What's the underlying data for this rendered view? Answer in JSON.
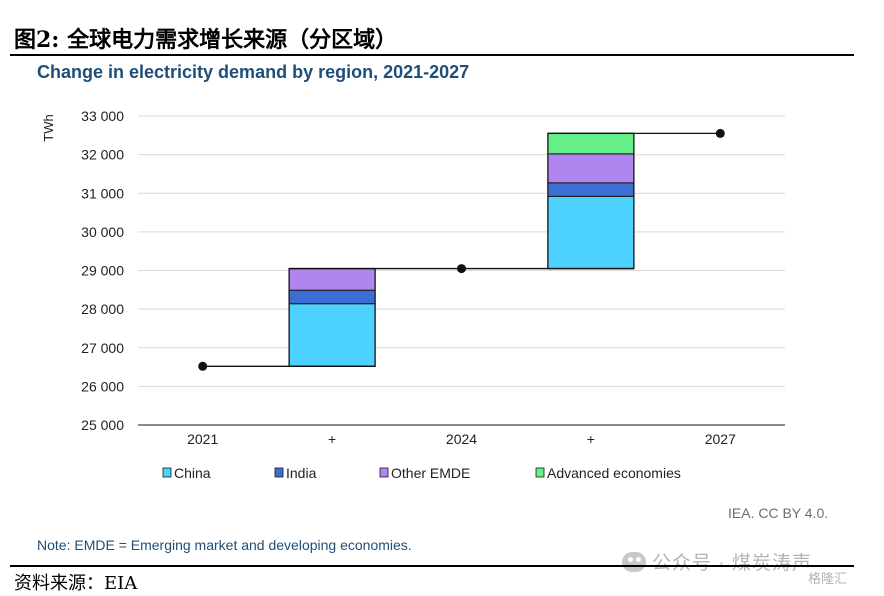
{
  "figure_title": "图2:  全球电力需求增长来源（分区域）",
  "source": "资料来源：EIA",
  "note": "Note: EMDE = Emerging market and developing economies.",
  "credit": "IEA. CC BY 4.0.",
  "watermark": "公众号 · 煤炭涛声",
  "watermark_badge": "格隆汇",
  "chart_data": {
    "type": "bar",
    "subtype": "waterfall-stacked",
    "title": "Change in electricity demand by region, 2021-2027",
    "ylabel": "TWh",
    "xlabel": "",
    "categories": [
      "2021",
      "+",
      "2024",
      "+",
      "2027"
    ],
    "ylim": [
      25000,
      33000
    ],
    "yticks": [
      25000,
      26000,
      27000,
      28000,
      29000,
      30000,
      31000,
      32000,
      33000
    ],
    "ytick_labels": [
      "25 000",
      "26 000",
      "27 000",
      "28 000",
      "29 000",
      "30 000",
      "31 000",
      "32 000",
      "33 000"
    ],
    "grid": true,
    "legend_position": "bottom",
    "totals": [
      {
        "category": "2021",
        "value": 26520
      },
      {
        "category": "2024",
        "value": 29050
      },
      {
        "category": "2027",
        "value": 32550
      }
    ],
    "series": [
      {
        "name": "China",
        "color": "#4dd2ff",
        "values": [
          0,
          1620,
          0,
          1870,
          0
        ]
      },
      {
        "name": "India",
        "color": "#3b6fd4",
        "values": [
          0,
          350,
          0,
          350,
          0
        ]
      },
      {
        "name": "Other EMDE",
        "color": "#b085ef",
        "values": [
          0,
          560,
          0,
          750,
          0
        ]
      },
      {
        "name": "Advanced economies",
        "color": "#66ee88",
        "values": [
          0,
          0,
          0,
          530,
          0
        ]
      }
    ]
  }
}
